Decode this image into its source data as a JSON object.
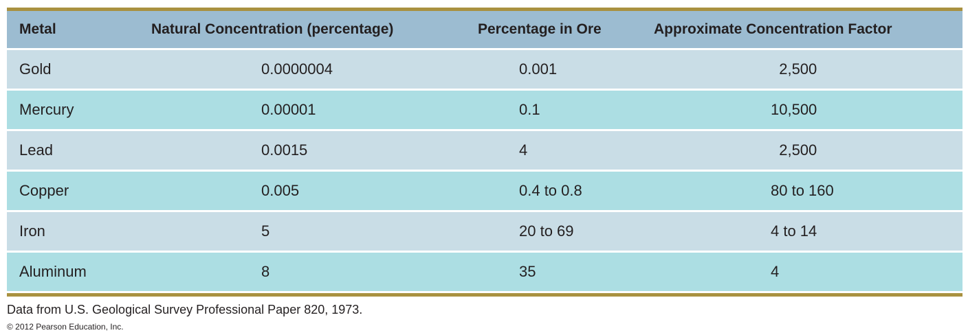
{
  "table": {
    "headers": [
      "Metal",
      "Natural Concentration (percentage)",
      "Percentage in Ore",
      "Approximate Concentration Factor"
    ],
    "rows": [
      [
        "Gold",
        "0.0000004",
        "0.001",
        "  2,500"
      ],
      [
        "Mercury",
        "0.00001",
        "0.1",
        "10,500"
      ],
      [
        "Lead",
        "0.0015",
        "4",
        "  2,500"
      ],
      [
        "Copper",
        "0.005",
        "0.4 to 0.8",
        "80 to 160"
      ],
      [
        "Iron",
        "5",
        "20 to 69",
        "4 to 14"
      ],
      [
        "Aluminum",
        "8",
        "35",
        "4"
      ]
    ]
  },
  "footnote": "Data from U.S. Geological Survey Professional Paper 820, 1973.",
  "copyright": "© 2012 Pearson Education, Inc.",
  "colors": {
    "rule": "#a99140",
    "header_bg": "#9cbcd1",
    "row_odd_bg": "#c9dde6",
    "row_even_bg": "#acdee3"
  }
}
